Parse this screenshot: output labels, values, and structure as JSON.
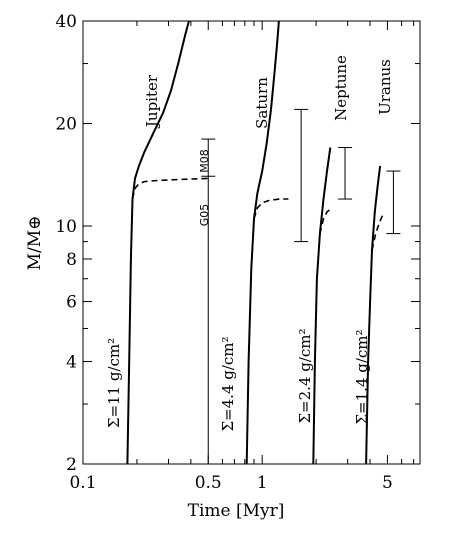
{
  "chart_data": {
    "type": "line",
    "xlabel": "Time [Myr]",
    "ylabel": "M/M⊕",
    "xscale": "log",
    "yscale": "log",
    "xlim": [
      0.1,
      7.6
    ],
    "ylim": [
      2,
      40
    ],
    "x_ticks": [
      {
        "value": 0.1,
        "label": "0.1"
      },
      {
        "value": 0.5,
        "label": "0.5"
      },
      {
        "value": 1,
        "label": "1"
      },
      {
        "value": 5,
        "label": "5"
      }
    ],
    "y_ticks": [
      {
        "value": 2,
        "label": "2"
      },
      {
        "value": 4,
        "label": "4"
      },
      {
        "value": 6,
        "label": "6"
      },
      {
        "value": 8,
        "label": "8"
      },
      {
        "value": 10,
        "label": "10"
      },
      {
        "value": 20,
        "label": "20"
      },
      {
        "value": 40,
        "label": "40"
      }
    ],
    "series": [
      {
        "name": "Jupiter",
        "style": "solid",
        "surface_density_label": "Σ=11  g/cm²",
        "points": [
          [
            0.177,
            2.0
          ],
          [
            0.181,
            4.0
          ],
          [
            0.185,
            8.0
          ],
          [
            0.189,
            12.0
          ],
          [
            0.195,
            13.8
          ],
          [
            0.205,
            15.0
          ],
          [
            0.22,
            16.5
          ],
          [
            0.25,
            19.0
          ],
          [
            0.28,
            21.5
          ],
          [
            0.31,
            25.0
          ],
          [
            0.34,
            30.0
          ],
          [
            0.37,
            36.0
          ],
          [
            0.39,
            40.0
          ]
        ],
        "dashed_points": [
          [
            0.189,
            12.0
          ],
          [
            0.195,
            12.9
          ],
          [
            0.205,
            13.3
          ],
          [
            0.22,
            13.5
          ],
          [
            0.26,
            13.6
          ],
          [
            0.35,
            13.7
          ],
          [
            0.5,
            13.8
          ]
        ]
      },
      {
        "name": "Saturn",
        "style": "solid",
        "surface_density_label": "Σ=4.4  g/cm²",
        "points": [
          [
            0.82,
            2.0
          ],
          [
            0.84,
            4.0
          ],
          [
            0.87,
            7.5
          ],
          [
            0.9,
            10.5
          ],
          [
            0.94,
            12.5
          ],
          [
            1.0,
            14.5
          ],
          [
            1.06,
            17.5
          ],
          [
            1.12,
            22.0
          ],
          [
            1.17,
            28.0
          ],
          [
            1.21,
            34.0
          ],
          [
            1.24,
            40.0
          ]
        ],
        "dashed_points": [
          [
            0.9,
            10.5
          ],
          [
            0.94,
            11.3
          ],
          [
            1.0,
            11.7
          ],
          [
            1.1,
            11.9
          ],
          [
            1.25,
            12.0
          ],
          [
            1.4,
            12.0
          ]
        ]
      },
      {
        "name": "Neptune",
        "style": "solid",
        "surface_density_label": "Σ=2.4  g/cm²",
        "points": [
          [
            1.93,
            2.0
          ],
          [
            1.97,
            4.0
          ],
          [
            2.02,
            7.0
          ],
          [
            2.1,
            9.5
          ],
          [
            2.2,
            12.0
          ],
          [
            2.3,
            14.5
          ],
          [
            2.4,
            17.0
          ]
        ],
        "dashed_points": [
          [
            2.1,
            9.5
          ],
          [
            2.2,
            10.5
          ],
          [
            2.3,
            11.0
          ],
          [
            2.45,
            11.3
          ]
        ]
      },
      {
        "name": "Uranus",
        "style": "solid",
        "surface_density_label": "Σ=1.4  g/cm²",
        "points": [
          [
            3.8,
            2.0
          ],
          [
            3.9,
            4.0
          ],
          [
            4.0,
            6.0
          ],
          [
            4.1,
            8.5
          ],
          [
            4.25,
            11.0
          ],
          [
            4.4,
            13.0
          ],
          [
            4.55,
            15.0
          ]
        ],
        "dashed_points": [
          [
            4.1,
            8.5
          ],
          [
            4.3,
            9.5
          ],
          [
            4.5,
            10.2
          ],
          [
            4.75,
            10.9
          ]
        ]
      }
    ],
    "error_bars": [
      {
        "x": 0.5,
        "y_low": 14.0,
        "y_high": 18.0,
        "label": "M08"
      },
      {
        "x": 1.65,
        "y_low": 9.0,
        "y_high": 22.0
      },
      {
        "x": 2.9,
        "y_low": 12.0,
        "y_high": 17.0
      },
      {
        "x": 5.4,
        "y_low": 9.5,
        "y_high": 14.5
      }
    ],
    "vertical_lines": [
      {
        "x": 0.5,
        "y_low": 2.0,
        "y_high": 14.0,
        "label": "G05"
      }
    ]
  }
}
